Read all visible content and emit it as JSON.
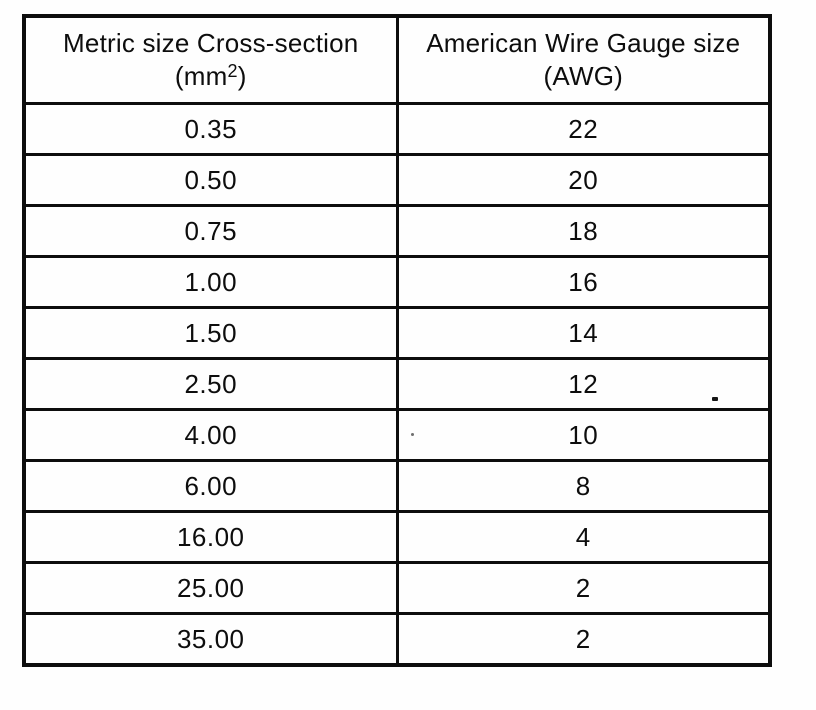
{
  "table": {
    "header": {
      "metric_title": "Metric size Cross-section",
      "metric_unit_open": "(mm",
      "metric_unit_sup": "2",
      "metric_unit_close": ")",
      "awg_title": "American Wire Gauge size",
      "awg_unit": "(AWG)"
    },
    "rows": [
      {
        "metric": "0.35",
        "awg": "22"
      },
      {
        "metric": "0.50",
        "awg": "20"
      },
      {
        "metric": "0.75",
        "awg": "18"
      },
      {
        "metric": "1.00",
        "awg": "16"
      },
      {
        "metric": "1.50",
        "awg": "14"
      },
      {
        "metric": "2.50",
        "awg": "12"
      },
      {
        "metric": "4.00",
        "awg": "10"
      },
      {
        "metric": "6.00",
        "awg": "8"
      },
      {
        "metric": "16.00",
        "awg": "4"
      },
      {
        "metric": "25.00",
        "awg": "2"
      },
      {
        "metric": "35.00",
        "awg": "2"
      }
    ],
    "colors": {
      "border": "#0d0d0d",
      "background": "#fefefe",
      "text": "#0d0d0d"
    }
  }
}
